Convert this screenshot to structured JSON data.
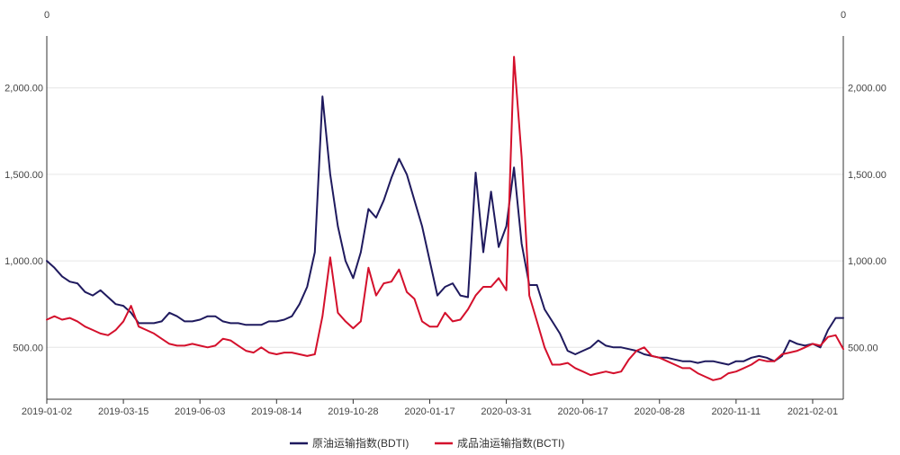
{
  "chart_data": {
    "type": "line",
    "title": "",
    "xlabel": "",
    "ylabel": "",
    "ylim": [
      200,
      2300
    ],
    "y_ticks": [
      500,
      1000,
      1500,
      2000
    ],
    "y_tick_labels": [
      "500.00",
      "1,000.00",
      "1,500.00",
      "2,000.00"
    ],
    "left_axis_top_label": "0",
    "right_axis_top_label": "0",
    "x_ticks": [
      {
        "index": 0,
        "label": "2019-01-02"
      },
      {
        "index": 10,
        "label": "2019-03-15"
      },
      {
        "index": 20,
        "label": "2019-06-03"
      },
      {
        "index": 30,
        "label": "2019-08-14"
      },
      {
        "index": 40,
        "label": "2019-10-28"
      },
      {
        "index": 50,
        "label": "2020-01-17"
      },
      {
        "index": 60,
        "label": "2020-03-31"
      },
      {
        "index": 70,
        "label": "2020-06-17"
      },
      {
        "index": 80,
        "label": "2020-08-28"
      },
      {
        "index": 90,
        "label": "2020-11-11"
      },
      {
        "index": 100,
        "label": "2021-02-01"
      }
    ],
    "x_max_index": 104,
    "series": [
      {
        "name": "原油运输指数(BDTI)",
        "color": "#1f1a5e",
        "points": [
          [
            0,
            1000
          ],
          [
            1,
            960
          ],
          [
            2,
            910
          ],
          [
            3,
            880
          ],
          [
            4,
            870
          ],
          [
            5,
            820
          ],
          [
            6,
            800
          ],
          [
            7,
            830
          ],
          [
            8,
            790
          ],
          [
            9,
            750
          ],
          [
            10,
            740
          ],
          [
            11,
            700
          ],
          [
            12,
            640
          ],
          [
            13,
            640
          ],
          [
            14,
            640
          ],
          [
            15,
            650
          ],
          [
            16,
            700
          ],
          [
            17,
            680
          ],
          [
            18,
            650
          ],
          [
            19,
            650
          ],
          [
            20,
            660
          ],
          [
            21,
            680
          ],
          [
            22,
            680
          ],
          [
            23,
            650
          ],
          [
            24,
            640
          ],
          [
            25,
            640
          ],
          [
            26,
            630
          ],
          [
            27,
            630
          ],
          [
            28,
            630
          ],
          [
            29,
            650
          ],
          [
            30,
            650
          ],
          [
            31,
            660
          ],
          [
            32,
            680
          ],
          [
            33,
            750
          ],
          [
            34,
            850
          ],
          [
            35,
            1050
          ],
          [
            36,
            1950
          ],
          [
            37,
            1500
          ],
          [
            38,
            1200
          ],
          [
            39,
            1000
          ],
          [
            40,
            900
          ],
          [
            41,
            1050
          ],
          [
            42,
            1300
          ],
          [
            43,
            1250
          ],
          [
            44,
            1350
          ],
          [
            45,
            1480
          ],
          [
            46,
            1590
          ],
          [
            47,
            1500
          ],
          [
            48,
            1350
          ],
          [
            49,
            1200
          ],
          [
            50,
            1000
          ],
          [
            51,
            800
          ],
          [
            52,
            850
          ],
          [
            53,
            870
          ],
          [
            54,
            800
          ],
          [
            55,
            790
          ],
          [
            56,
            1510
          ],
          [
            57,
            1050
          ],
          [
            58,
            1400
          ],
          [
            59,
            1080
          ],
          [
            60,
            1200
          ],
          [
            61,
            1540
          ],
          [
            62,
            1100
          ],
          [
            63,
            860
          ],
          [
            64,
            860
          ],
          [
            65,
            720
          ],
          [
            66,
            650
          ],
          [
            67,
            580
          ],
          [
            68,
            480
          ],
          [
            69,
            460
          ],
          [
            70,
            480
          ],
          [
            71,
            500
          ],
          [
            72,
            540
          ],
          [
            73,
            510
          ],
          [
            74,
            500
          ],
          [
            75,
            500
          ],
          [
            76,
            490
          ],
          [
            77,
            480
          ],
          [
            78,
            460
          ],
          [
            79,
            450
          ],
          [
            80,
            440
          ],
          [
            81,
            440
          ],
          [
            82,
            430
          ],
          [
            83,
            420
          ],
          [
            84,
            420
          ],
          [
            85,
            410
          ],
          [
            86,
            420
          ],
          [
            87,
            420
          ],
          [
            88,
            410
          ],
          [
            89,
            400
          ],
          [
            90,
            420
          ],
          [
            91,
            420
          ],
          [
            92,
            440
          ],
          [
            93,
            450
          ],
          [
            94,
            440
          ],
          [
            95,
            420
          ],
          [
            96,
            450
          ],
          [
            97,
            540
          ],
          [
            98,
            520
          ],
          [
            99,
            510
          ],
          [
            100,
            520
          ],
          [
            101,
            500
          ],
          [
            102,
            600
          ],
          [
            103,
            670
          ],
          [
            104,
            670
          ]
        ]
      },
      {
        "name": "成品油运输指数(BCTI)",
        "color": "#d4102c",
        "points": [
          [
            0,
            660
          ],
          [
            1,
            680
          ],
          [
            2,
            660
          ],
          [
            3,
            670
          ],
          [
            4,
            650
          ],
          [
            5,
            620
          ],
          [
            6,
            600
          ],
          [
            7,
            580
          ],
          [
            8,
            570
          ],
          [
            9,
            600
          ],
          [
            10,
            650
          ],
          [
            11,
            740
          ],
          [
            12,
            620
          ],
          [
            13,
            600
          ],
          [
            14,
            580
          ],
          [
            15,
            550
          ],
          [
            16,
            520
          ],
          [
            17,
            510
          ],
          [
            18,
            510
          ],
          [
            19,
            520
          ],
          [
            20,
            510
          ],
          [
            21,
            500
          ],
          [
            22,
            510
          ],
          [
            23,
            550
          ],
          [
            24,
            540
          ],
          [
            25,
            510
          ],
          [
            26,
            480
          ],
          [
            27,
            470
          ],
          [
            28,
            500
          ],
          [
            29,
            470
          ],
          [
            30,
            460
          ],
          [
            31,
            470
          ],
          [
            32,
            470
          ],
          [
            33,
            460
          ],
          [
            34,
            450
          ],
          [
            35,
            460
          ],
          [
            36,
            680
          ],
          [
            37,
            1020
          ],
          [
            38,
            700
          ],
          [
            39,
            650
          ],
          [
            40,
            610
          ],
          [
            41,
            650
          ],
          [
            42,
            960
          ],
          [
            43,
            800
          ],
          [
            44,
            870
          ],
          [
            45,
            880
          ],
          [
            46,
            950
          ],
          [
            47,
            820
          ],
          [
            48,
            780
          ],
          [
            49,
            650
          ],
          [
            50,
            620
          ],
          [
            51,
            620
          ],
          [
            52,
            700
          ],
          [
            53,
            650
          ],
          [
            54,
            660
          ],
          [
            55,
            720
          ],
          [
            56,
            800
          ],
          [
            57,
            850
          ],
          [
            58,
            850
          ],
          [
            59,
            900
          ],
          [
            60,
            830
          ],
          [
            61,
            2180
          ],
          [
            62,
            1600
          ],
          [
            63,
            800
          ],
          [
            64,
            650
          ],
          [
            65,
            500
          ],
          [
            66,
            400
          ],
          [
            67,
            400
          ],
          [
            68,
            410
          ],
          [
            69,
            380
          ],
          [
            70,
            360
          ],
          [
            71,
            340
          ],
          [
            72,
            350
          ],
          [
            73,
            360
          ],
          [
            74,
            350
          ],
          [
            75,
            360
          ],
          [
            76,
            430
          ],
          [
            77,
            480
          ],
          [
            78,
            500
          ],
          [
            79,
            450
          ],
          [
            80,
            440
          ],
          [
            81,
            420
          ],
          [
            82,
            400
          ],
          [
            83,
            380
          ],
          [
            84,
            380
          ],
          [
            85,
            350
          ],
          [
            86,
            330
          ],
          [
            87,
            310
          ],
          [
            88,
            320
          ],
          [
            89,
            350
          ],
          [
            90,
            360
          ],
          [
            91,
            380
          ],
          [
            92,
            400
          ],
          [
            93,
            430
          ],
          [
            94,
            420
          ],
          [
            95,
            420
          ],
          [
            96,
            460
          ],
          [
            97,
            470
          ],
          [
            98,
            480
          ],
          [
            99,
            500
          ],
          [
            100,
            520
          ],
          [
            101,
            510
          ],
          [
            102,
            560
          ],
          [
            103,
            570
          ],
          [
            104,
            490
          ]
        ]
      }
    ]
  }
}
